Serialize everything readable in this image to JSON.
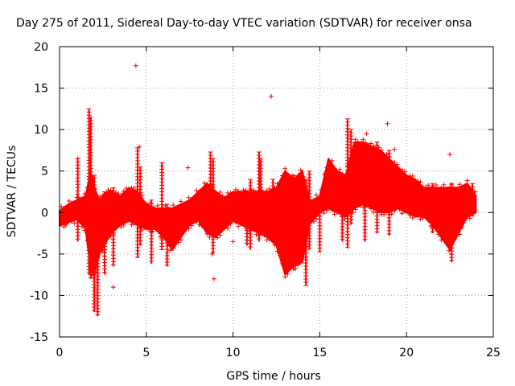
{
  "chart_data": {
    "type": "scatter",
    "title": "Day 275 of 2011, Sidereal Day-to-day VTEC variation (SDTVAR) for receiver onsa",
    "xlabel": "GPS time / hours",
    "ylabel": "SDTVAR / TECUs",
    "xlim": [
      0,
      25
    ],
    "ylim": [
      -15,
      20
    ],
    "grid": true,
    "marker": "+",
    "color": "#ff0000",
    "x_ticks": [
      0,
      5,
      10,
      15,
      20,
      25
    ],
    "y_ticks": [
      -15,
      -10,
      -5,
      0,
      5,
      10,
      15,
      20
    ],
    "band": {
      "x": [
        0,
        0.5,
        1.0,
        1.5,
        1.8,
        2.0,
        2.3,
        2.7,
        3.0,
        3.5,
        4.0,
        4.5,
        5.0,
        5.5,
        6.0,
        6.5,
        7.0,
        7.5,
        8.0,
        8.5,
        9.0,
        9.5,
        10.0,
        10.5,
        11.0,
        11.5,
        12.0,
        12.5,
        13.0,
        13.5,
        14.0,
        14.4,
        14.6,
        15.0,
        15.5,
        16.0,
        16.5,
        17.0,
        17.5,
        18.0,
        18.5,
        19.0,
        19.5,
        20.0,
        20.5,
        21.0,
        21.5,
        22.0,
        22.5,
        23.0,
        23.5,
        24.0
      ],
      "upper": [
        0.2,
        1.0,
        1.5,
        2.0,
        5.0,
        3.0,
        1.5,
        2.5,
        2.5,
        2.0,
        3.0,
        2.5,
        1.0,
        0.5,
        0.5,
        0.5,
        1.0,
        1.5,
        2.5,
        3.5,
        2.5,
        1.8,
        2.5,
        2.5,
        2.5,
        2.5,
        2.5,
        3.0,
        5.0,
        4.0,
        5.0,
        1.5,
        1.5,
        2.0,
        6.5,
        5.0,
        4.5,
        8.5,
        8.5,
        8.0,
        7.5,
        6.5,
        5.5,
        4.5,
        4.0,
        3.0,
        3.0,
        3.0,
        3.0,
        3.0,
        3.5,
        2.0
      ],
      "lower": [
        -1.6,
        -1.2,
        -0.8,
        -2.0,
        -7.0,
        -7.5,
        -5.0,
        -3.5,
        -2.5,
        -1.5,
        -1.0,
        -1.5,
        -2.0,
        -2.0,
        -3.0,
        -4.5,
        -3.0,
        -1.5,
        -1.0,
        -2.5,
        -3.0,
        -2.0,
        -1.0,
        -1.5,
        -2.0,
        -2.5,
        -3.0,
        -4.0,
        -7.5,
        -6.5,
        -6.0,
        -1.5,
        -1.0,
        0.0,
        0.5,
        0.0,
        -0.5,
        0.5,
        1.0,
        0.5,
        0.0,
        0.0,
        0.5,
        0.0,
        -0.5,
        -0.5,
        -1.5,
        -3.0,
        -4.5,
        -2.5,
        -0.5,
        0.0
      ]
    },
    "spikes": [
      {
        "x": 1.05,
        "y1": -3.5,
        "y2": 6.5
      },
      {
        "x": 1.7,
        "y1": -7.5,
        "y2": 12.5
      },
      {
        "x": 1.8,
        "y1": -8.0,
        "y2": 11.5
      },
      {
        "x": 2.0,
        "y1": -12.0,
        "y2": 4.5
      },
      {
        "x": 2.2,
        "y1": -12.5,
        "y2": 2.0
      },
      {
        "x": 2.6,
        "y1": -7.5,
        "y2": 2.5
      },
      {
        "x": 3.1,
        "y1": -6.5,
        "y2": 3.0
      },
      {
        "x": 4.5,
        "y1": -5.5,
        "y2": 7.8
      },
      {
        "x": 4.65,
        "y1": -4.0,
        "y2": 5.5
      },
      {
        "x": 5.3,
        "y1": -6.2,
        "y2": 1.5
      },
      {
        "x": 5.9,
        "y1": -4.5,
        "y2": 6.0
      },
      {
        "x": 6.2,
        "y1": -6.5,
        "y2": 1.0
      },
      {
        "x": 8.7,
        "y1": -2.0,
        "y2": 7.3
      },
      {
        "x": 8.85,
        "y1": -5.0,
        "y2": 6.5
      },
      {
        "x": 10.8,
        "y1": -4.0,
        "y2": 2.5
      },
      {
        "x": 11.0,
        "y1": -4.5,
        "y2": 4.0
      },
      {
        "x": 11.5,
        "y1": -3.5,
        "y2": 7.3
      },
      {
        "x": 11.6,
        "y1": -2.5,
        "y2": 6.5
      },
      {
        "x": 12.3,
        "y1": -3.0,
        "y2": 4.0
      },
      {
        "x": 13.5,
        "y1": -7.0,
        "y2": 4.5
      },
      {
        "x": 14.2,
        "y1": -8.8,
        "y2": 4.0
      },
      {
        "x": 14.4,
        "y1": -4.5,
        "y2": 5.0
      },
      {
        "x": 15.0,
        "y1": -4.8,
        "y2": 1.5
      },
      {
        "x": 16.3,
        "y1": -3.5,
        "y2": 4.5
      },
      {
        "x": 16.6,
        "y1": -4.3,
        "y2": 11.3
      },
      {
        "x": 16.8,
        "y1": -1.5,
        "y2": 10.0
      },
      {
        "x": 17.6,
        "y1": -3.5,
        "y2": 8.0
      },
      {
        "x": 18.3,
        "y1": -2.5,
        "y2": 8.5
      },
      {
        "x": 19.0,
        "y1": -2.8,
        "y2": 7.5
      },
      {
        "x": 21.5,
        "y1": -2.5,
        "y2": 3.5
      },
      {
        "x": 22.6,
        "y1": -6.0,
        "y2": 3.5
      },
      {
        "x": 23.8,
        "y1": -0.5,
        "y2": 3.5
      }
    ],
    "outliers": [
      {
        "x": 0.35,
        "y": -1.5
      },
      {
        "x": 1.05,
        "y": 6.5
      },
      {
        "x": 3.1,
        "y": -9.0
      },
      {
        "x": 4.4,
        "y": 17.7
      },
      {
        "x": 4.6,
        "y": 7.9
      },
      {
        "x": 7.4,
        "y": 5.4
      },
      {
        "x": 8.8,
        "y": -5.0
      },
      {
        "x": 8.9,
        "y": -8.0
      },
      {
        "x": 10.0,
        "y": -3.5
      },
      {
        "x": 12.2,
        "y": 14.0
      },
      {
        "x": 18.9,
        "y": 10.7
      },
      {
        "x": 17.7,
        "y": 9.5
      },
      {
        "x": 22.5,
        "y": 7.0
      },
      {
        "x": 19.3,
        "y": 7.6
      }
    ]
  }
}
